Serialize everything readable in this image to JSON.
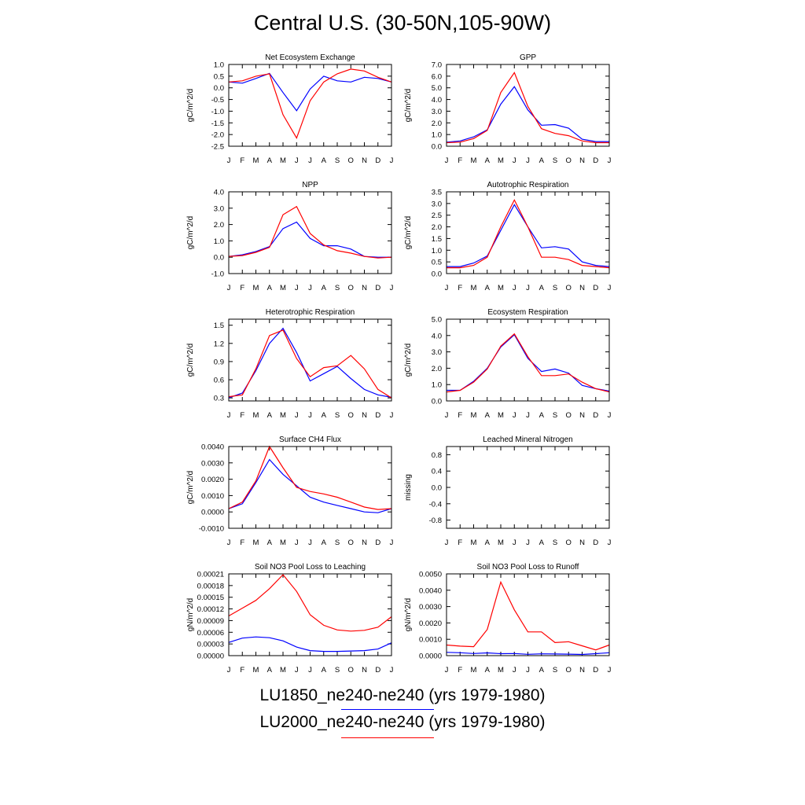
{
  "figure_title": "Central U.S. (30-50N,105-90W)",
  "months": [
    "J",
    "F",
    "M",
    "A",
    "M",
    "J",
    "J",
    "A",
    "S",
    "O",
    "N",
    "D",
    "J"
  ],
  "colors": {
    "LU1850": "#0000ff",
    "LU2000": "#ff0000"
  },
  "legend": [
    {
      "label": "LU1850_ne240-ne240 (yrs 1979-1980)",
      "color": "#0000ff"
    },
    {
      "label": "LU2000_ne240-ne240 (yrs 1979-1980)",
      "color": "#ff0000"
    }
  ],
  "chart_data": [
    {
      "type": "line",
      "title": "Net Ecosystem Exchange",
      "ylabel": "gC/m^2/d",
      "ylim": [
        -2.5,
        1.0
      ],
      "yticks": [
        "1.0",
        "0.5",
        "0.0",
        "-0.5",
        "-1.0",
        "-1.5",
        "-2.0",
        "-2.5"
      ],
      "ytick_values": [
        1.0,
        0.5,
        0.0,
        -0.5,
        -1.0,
        -1.5,
        -2.0,
        -2.5
      ],
      "series": [
        {
          "key": "LU1850",
          "values": [
            0.25,
            0.2,
            0.4,
            0.62,
            -0.2,
            -0.98,
            -0.05,
            0.5,
            0.3,
            0.25,
            0.45,
            0.4,
            0.25
          ]
        },
        {
          "key": "LU2000",
          "values": [
            0.25,
            0.3,
            0.5,
            0.6,
            -1.15,
            -2.15,
            -0.55,
            0.25,
            0.6,
            0.8,
            0.72,
            0.45,
            0.25
          ]
        }
      ]
    },
    {
      "type": "line",
      "title": "GPP",
      "ylabel": "gC/m^2/d",
      "ylim": [
        0.0,
        7.0
      ],
      "yticks": [
        "7.0",
        "6.0",
        "5.0",
        "4.0",
        "3.0",
        "2.0",
        "1.0",
        "0.0"
      ],
      "ytick_values": [
        7,
        6,
        5,
        4,
        3,
        2,
        1,
        0
      ],
      "series": [
        {
          "key": "LU1850",
          "values": [
            0.35,
            0.45,
            0.8,
            1.4,
            3.6,
            5.1,
            3.1,
            1.8,
            1.85,
            1.55,
            0.6,
            0.4,
            0.4
          ]
        },
        {
          "key": "LU2000",
          "values": [
            0.3,
            0.35,
            0.65,
            1.35,
            4.6,
            6.3,
            3.4,
            1.5,
            1.1,
            0.9,
            0.45,
            0.3,
            0.3
          ]
        }
      ]
    },
    {
      "type": "line",
      "title": "NPP",
      "ylabel": "gC/m^2/d",
      "ylim": [
        -1.0,
        4.0
      ],
      "yticks": [
        "4.0",
        "3.0",
        "2.0",
        "1.0",
        "0.0",
        "-1.0"
      ],
      "ytick_values": [
        4,
        3,
        2,
        1,
        0,
        -1
      ],
      "series": [
        {
          "key": "LU1850",
          "values": [
            0.05,
            0.15,
            0.35,
            0.65,
            1.75,
            2.15,
            1.15,
            0.7,
            0.7,
            0.5,
            0.05,
            0.0,
            0.0
          ]
        },
        {
          "key": "LU2000",
          "values": [
            0.05,
            0.1,
            0.3,
            0.6,
            2.6,
            3.1,
            1.45,
            0.75,
            0.4,
            0.25,
            0.05,
            -0.05,
            0.0
          ]
        }
      ]
    },
    {
      "type": "line",
      "title": "Autotrophic Respiration",
      "ylabel": "gC/m^2/d",
      "ylim": [
        0.0,
        3.5
      ],
      "yticks": [
        "3.5",
        "3.0",
        "2.5",
        "2.0",
        "1.5",
        "1.0",
        "0.5",
        "0.0"
      ],
      "ytick_values": [
        3.5,
        3.0,
        2.5,
        2.0,
        1.5,
        1.0,
        0.5,
        0.0
      ],
      "series": [
        {
          "key": "LU1850",
          "values": [
            0.3,
            0.3,
            0.45,
            0.75,
            1.85,
            2.95,
            2.0,
            1.1,
            1.15,
            1.05,
            0.5,
            0.35,
            0.3
          ]
        },
        {
          "key": "LU2000",
          "values": [
            0.25,
            0.25,
            0.35,
            0.7,
            2.0,
            3.15,
            2.0,
            0.7,
            0.7,
            0.6,
            0.35,
            0.3,
            0.25
          ]
        }
      ]
    },
    {
      "type": "line",
      "title": "Heterotrophic Respiration",
      "ylabel": "gC/m^2/d",
      "ylim": [
        0.25,
        1.6
      ],
      "yticks": [
        "1.5",
        "1.2",
        "0.9",
        "0.6",
        "0.3"
      ],
      "ytick_values": [
        1.5,
        1.2,
        0.9,
        0.6,
        0.3
      ],
      "series": [
        {
          "key": "LU1850",
          "values": [
            0.3,
            0.38,
            0.75,
            1.2,
            1.45,
            1.05,
            0.58,
            0.7,
            0.82,
            0.62,
            0.44,
            0.35,
            0.31
          ]
        },
        {
          "key": "LU2000",
          "values": [
            0.32,
            0.35,
            0.78,
            1.33,
            1.42,
            0.95,
            0.65,
            0.8,
            0.83,
            1.0,
            0.78,
            0.44,
            0.3
          ]
        }
      ]
    },
    {
      "type": "line",
      "title": "Ecosystem Respiration",
      "ylabel": "gC/m^2/d",
      "ylim": [
        0.0,
        5.0
      ],
      "yticks": [
        "5.0",
        "4.0",
        "3.0",
        "2.0",
        "1.0",
        "0.0"
      ],
      "ytick_values": [
        5,
        4,
        3,
        2,
        1,
        0
      ],
      "series": [
        {
          "key": "LU1850",
          "values": [
            0.65,
            0.65,
            1.2,
            2.0,
            3.3,
            4.05,
            2.6,
            1.8,
            1.95,
            1.7,
            0.95,
            0.75,
            0.6
          ]
        },
        {
          "key": "LU2000",
          "values": [
            0.55,
            0.65,
            1.15,
            1.95,
            3.35,
            4.1,
            2.7,
            1.55,
            1.55,
            1.65,
            1.15,
            0.75,
            0.55
          ]
        }
      ]
    },
    {
      "type": "line",
      "title": "Surface CH4 Flux",
      "ylabel": "gC/m^2/d",
      "ylim": [
        -0.001,
        0.004
      ],
      "yticks": [
        "0.0040",
        "0.0030",
        "0.0020",
        "0.0010",
        "0.0000",
        "-0.0010"
      ],
      "ytick_values": [
        0.004,
        0.003,
        0.002,
        0.001,
        0.0,
        -0.001
      ],
      "series": [
        {
          "key": "LU1850",
          "values": [
            0.0002,
            0.0005,
            0.0018,
            0.0032,
            0.0023,
            0.0016,
            0.0009,
            0.0006,
            0.0004,
            0.0002,
            0.0,
            -5e-05,
            0.0002
          ]
        },
        {
          "key": "LU2000",
          "values": [
            0.0002,
            0.0006,
            0.0019,
            0.004,
            0.0027,
            0.0015,
            0.00125,
            0.0011,
            0.0009,
            0.0006,
            0.0003,
            0.00015,
            0.0002
          ]
        }
      ]
    },
    {
      "type": "line",
      "title": "Leached Mineral Nitrogen",
      "ylabel": "missing",
      "ylim": [
        -1.0,
        1.0
      ],
      "yticks": [
        "0.8",
        "0.4",
        "0.0",
        "-0.4",
        "-0.8"
      ],
      "ytick_values": [
        0.8,
        0.4,
        0.0,
        -0.4,
        -0.8
      ],
      "series": []
    },
    {
      "type": "line",
      "title": "Soil NO3 Pool Loss to Leaching",
      "ylabel": "gN/m^2/d",
      "ylim": [
        0.0,
        0.00021
      ],
      "yticks": [
        "0.00021",
        "0.00018",
        "0.00015",
        "0.00012",
        "0.00009",
        "0.00006",
        "0.00003",
        "0.00000"
      ],
      "ytick_values": [
        0.00021,
        0.00018,
        0.00015,
        0.00012,
        9e-05,
        6e-05,
        3e-05,
        0.0
      ],
      "series": [
        {
          "key": "LU1850",
          "values": [
            3.4e-05,
            4.5e-05,
            4.8e-05,
            4.6e-05,
            3.8e-05,
            2.2e-05,
            1.3e-05,
            1.1e-05,
            1.1e-05,
            1.2e-05,
            1.3e-05,
            1.7e-05,
            3.3e-05
          ]
        },
        {
          "key": "LU2000",
          "values": [
            0.000102,
            0.000122,
            0.000142,
            0.000172,
            0.000208,
            0.000165,
            0.000105,
            7.8e-05,
            6.6e-05,
            6.3e-05,
            6.5e-05,
            7.3e-05,
            0.0001
          ]
        }
      ]
    },
    {
      "type": "line",
      "title": "Soil NO3 Pool Loss to Runoff",
      "ylabel": "gN/m^2/d",
      "ylim": [
        0.0,
        0.005
      ],
      "yticks": [
        "0.0050",
        "0.0040",
        "0.0030",
        "0.0020",
        "0.0010",
        "0.0000"
      ],
      "ytick_values": [
        0.005,
        0.004,
        0.003,
        0.002,
        0.001,
        0.0
      ],
      "series": [
        {
          "key": "LU1850",
          "values": [
            0.0002,
            0.00018,
            0.00013,
            0.00017,
            0.00012,
            0.00013,
            8e-05,
            0.00011,
            0.0001,
            9e-05,
            7e-05,
            0.00012,
            0.00018
          ]
        },
        {
          "key": "LU2000",
          "values": [
            0.00065,
            0.00058,
            0.00055,
            0.0016,
            0.0045,
            0.0028,
            0.00145,
            0.00145,
            0.0008,
            0.00085,
            0.0006,
            0.00035,
            0.00065
          ]
        }
      ]
    }
  ]
}
